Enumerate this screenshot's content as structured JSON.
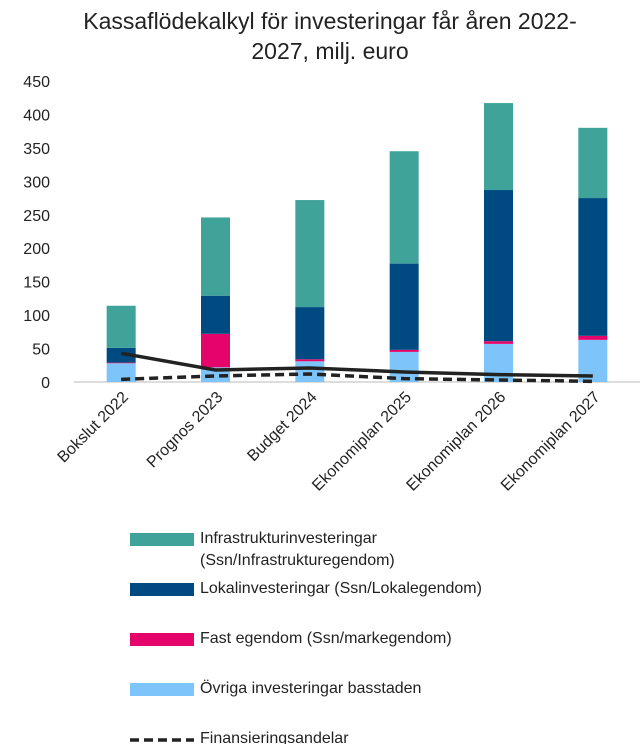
{
  "chart_data": {
    "type": "bar",
    "stacked": true,
    "title": "Kassaflödekalkyl för investeringar får åren 2022-2027, milj. euro",
    "categories": [
      "Bokslut 2022",
      "Prognos 2023",
      "Budget 2024",
      "Ekonomiplan 2025",
      "Ekonomiplan 2026",
      "Ekonomiplan 2027"
    ],
    "series": [
      {
        "name": "Övriga investeringar basstaden",
        "color": "#7dc4fa",
        "values": [
          28,
          22,
          31,
          45,
          57,
          63
        ]
      },
      {
        "name": "Fast egendom (Ssn/markegendom)",
        "color": "#e5046a",
        "values": [
          1,
          50,
          3,
          3,
          4,
          6
        ]
      },
      {
        "name": "Lokalinvesteringar (Ssn/Lokalegendom)",
        "color": "#004a82",
        "values": [
          22,
          57,
          78,
          129,
          226,
          206
        ]
      },
      {
        "name": "Infrastrukturinvesteringar (Ssn/Infrastrukturegendom)",
        "color": "#3fa39a",
        "values": [
          63,
          117,
          160,
          168,
          130,
          105
        ]
      },
      {
        "type": "line",
        "color": "#222222",
        "dash": false,
        "values": [
          43,
          18,
          21,
          15,
          11,
          9
        ]
      },
      {
        "type": "line",
        "name": "Finansieringsandelar",
        "color": "#222222",
        "dash": true,
        "values": [
          4,
          9,
          12,
          5,
          3,
          1
        ]
      }
    ],
    "ylim": [
      0,
      450
    ],
    "yticks": [
      0,
      50,
      100,
      150,
      200,
      250,
      300,
      350,
      400,
      450
    ],
    "grid": false
  }
}
